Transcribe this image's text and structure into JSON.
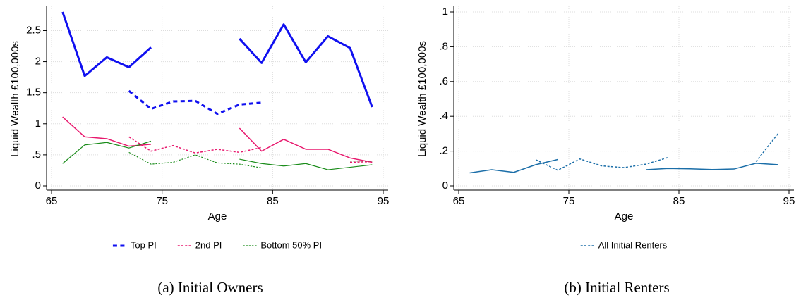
{
  "chart_data": [
    {
      "type": "line",
      "caption": "(a) Initial Owners",
      "ylabel": "Liquid Wealth £100,000s",
      "xlabel": "Age",
      "x": [
        66,
        68,
        70,
        72,
        74,
        76,
        78,
        80,
        82,
        84,
        86,
        88,
        90,
        92,
        94
      ],
      "xlim": [
        65,
        95
      ],
      "xticks": [
        65,
        75,
        85,
        95
      ],
      "ylim": [
        0,
        2.8
      ],
      "yticks": [
        0,
        {
          "value": 0.5,
          "label": ".5"
        },
        1,
        1.5,
        2,
        2.5
      ],
      "grid": true,
      "legend": "bottom",
      "series": [
        {
          "color": "#1010f0",
          "style": "solid",
          "width": 3,
          "values": [
            2.8,
            1.77,
            2.07,
            1.91,
            2.23,
            null,
            null,
            null,
            2.37,
            1.98,
            2.6,
            1.99,
            2.41,
            2.22,
            1.27
          ]
        },
        {
          "name": "Top PI",
          "color": "#1010f0",
          "style": "dashed",
          "width": 3,
          "values": [
            null,
            null,
            null,
            1.53,
            1.24,
            1.36,
            1.37,
            1.16,
            1.31,
            1.34,
            null,
            null,
            null,
            null,
            null
          ]
        },
        {
          "color": "#e8196e",
          "style": "solid",
          "width": 1.5,
          "values": [
            1.11,
            0.79,
            0.76,
            0.64,
            0.67,
            null,
            null,
            null,
            0.93,
            0.56,
            0.75,
            0.59,
            0.59,
            0.45,
            0.38
          ]
        },
        {
          "name": "2nd PI",
          "color": "#e8196e",
          "style": "dashed",
          "width": 1.5,
          "values": [
            null,
            null,
            null,
            0.79,
            0.56,
            0.65,
            0.53,
            0.59,
            0.54,
            0.62,
            null,
            null,
            null,
            0.38,
            0.39
          ]
        },
        {
          "color": "#1a8c1a",
          "style": "solid",
          "width": 1.2,
          "values": [
            0.36,
            0.66,
            0.7,
            0.61,
            0.72,
            null,
            null,
            null,
            0.43,
            0.36,
            0.32,
            0.36,
            0.26,
            0.3,
            0.34
          ]
        },
        {
          "name": "Bottom 50% PI",
          "color": "#1a8c1a",
          "style": "dashed",
          "width": 1.2,
          "values": [
            null,
            null,
            null,
            0.54,
            0.35,
            0.38,
            0.5,
            0.37,
            0.35,
            0.29,
            null,
            null,
            null,
            0.4,
            0.4
          ]
        }
      ]
    },
    {
      "type": "line",
      "caption": "(b) Initial Renters",
      "ylabel": "Liquid Wealth £100,000s",
      "xlabel": "Age",
      "x": [
        66,
        68,
        70,
        72,
        74,
        76,
        78,
        80,
        82,
        84,
        86,
        88,
        90,
        92,
        94
      ],
      "xlim": [
        65,
        95
      ],
      "xticks": [
        65,
        75,
        85,
        95
      ],
      "ylim": [
        0,
        1
      ],
      "yticks": [
        0,
        {
          "value": 0.2,
          "label": ".2"
        },
        {
          "value": 0.4,
          "label": ".4"
        },
        {
          "value": 0.6,
          "label": ".6"
        },
        {
          "value": 0.8,
          "label": ".8"
        },
        1
      ],
      "grid": true,
      "legend": "bottom",
      "series": [
        {
          "color": "#1b6ea8",
          "style": "solid",
          "width": 1.5,
          "values": [
            0.075,
            0.093,
            0.078,
            0.122,
            0.152,
            null,
            null,
            null,
            0.093,
            0.1,
            0.098,
            0.094,
            0.097,
            0.13,
            0.122
          ]
        },
        {
          "name": "All Initial Renters",
          "color": "#1b6ea8",
          "style": "dashed",
          "width": 1.5,
          "values": [
            null,
            null,
            null,
            0.15,
            0.09,
            0.155,
            0.115,
            0.105,
            0.125,
            0.163,
            null,
            null,
            null,
            0.14,
            0.3
          ]
        }
      ]
    }
  ]
}
